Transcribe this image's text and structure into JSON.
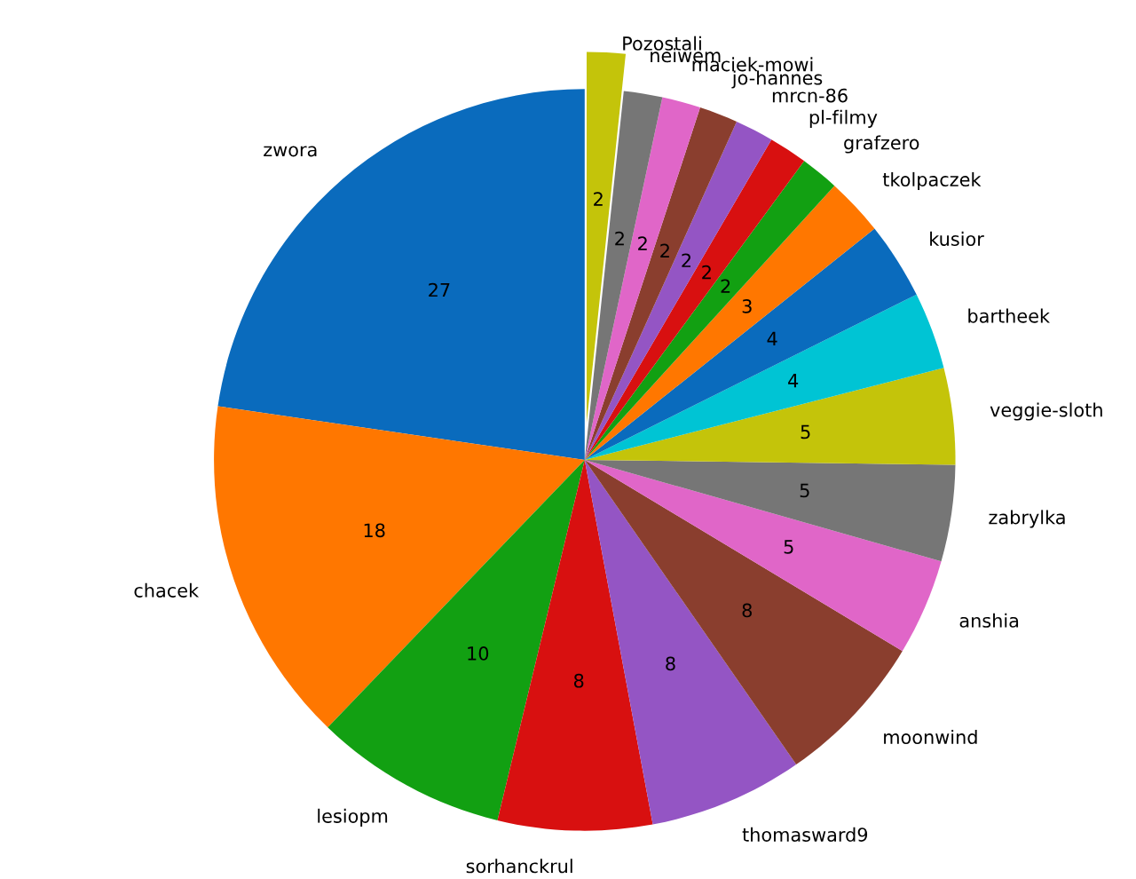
{
  "chart_data": {
    "type": "pie",
    "categories": [
      "zwora",
      "chacek",
      "lesiopm",
      "sorhanckrul",
      "thomasward9",
      "moonwind",
      "anshia",
      "zabrylka",
      "veggie-sloth",
      "bartheek",
      "kusior",
      "tkolpaczek",
      "grafzero",
      "pl-filmy",
      "mrcn-86",
      "jo-hannes",
      "maciek-mowi",
      "neiwem",
      "Pozostali"
    ],
    "values": [
      27,
      18,
      10,
      8,
      8,
      8,
      5,
      5,
      5,
      4,
      4,
      3,
      2,
      2,
      2,
      2,
      2,
      2,
      2
    ],
    "colors": [
      "#0a6bbd",
      "#ff7700",
      "#12a012",
      "#d81010",
      "#9455c4",
      "#8a3e2e",
      "#e066c8",
      "#767676",
      "#c4c40a",
      "#00c4d4",
      "#0a6bbd",
      "#ff7700",
      "#12a012",
      "#d81010",
      "#9455c4",
      "#8a3e2e",
      "#e066c8",
      "#767676",
      "#c4c40a"
    ],
    "data_labels": true
  }
}
